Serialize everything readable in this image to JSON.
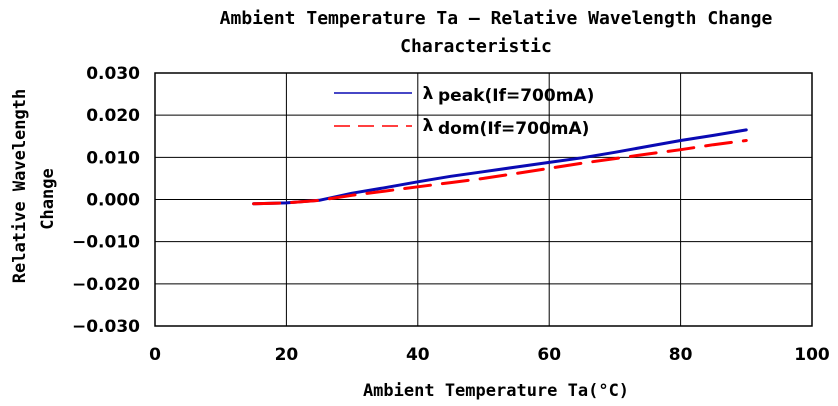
{
  "chart_data": {
    "type": "line",
    "title_line1": "Ambient Temperature Ta  –  Relative Wavelength Change",
    "title_line2": "Characteristic",
    "xlabel": "Ambient Temperature Ta(°C)",
    "ylabel_line1": "Relative Wavelength",
    "ylabel_line2": "Change",
    "xlim": [
      0,
      100
    ],
    "ylim": [
      -0.03,
      0.03
    ],
    "x_ticks": [
      0,
      20,
      40,
      60,
      80,
      100
    ],
    "x_tick_labels": [
      "0",
      "20",
      "40",
      "60",
      "80",
      "100"
    ],
    "y_ticks": [
      0.03,
      0.02,
      0.01,
      0.0,
      -0.01,
      -0.02,
      -0.03
    ],
    "y_tick_labels": [
      "0.030",
      "0.020",
      "0.010",
      "0.000",
      "−0.010",
      "−0.020",
      "−0.030"
    ],
    "grid": true,
    "legend_position": "top-center",
    "series": [
      {
        "name": "peak(If=700mA)",
        "color": "#0a0ab4",
        "style": "solid",
        "x": [
          15,
          20,
          25,
          30,
          35,
          40,
          45,
          50,
          55,
          60,
          65,
          70,
          75,
          80,
          85,
          90
        ],
        "y": [
          -0.001,
          -0.0008,
          -0.0002,
          0.0015,
          0.0028,
          0.0042,
          0.0055,
          0.0066,
          0.0077,
          0.0088,
          0.0099,
          0.0112,
          0.0126,
          0.014,
          0.0152,
          0.0165
        ]
      },
      {
        "name": "dom(If=700mA)",
        "color": "#ff0000",
        "style": "dashed",
        "x": [
          15,
          20,
          25,
          30,
          35,
          40,
          45,
          50,
          55,
          60,
          65,
          70,
          75,
          80,
          85,
          90
        ],
        "y": [
          -0.001,
          -0.0008,
          -0.0002,
          0.001,
          0.002,
          0.003,
          0.004,
          0.005,
          0.0062,
          0.0074,
          0.0086,
          0.0097,
          0.0108,
          0.0118,
          0.013,
          0.014
        ]
      }
    ],
    "legend_symbol": "λ"
  }
}
